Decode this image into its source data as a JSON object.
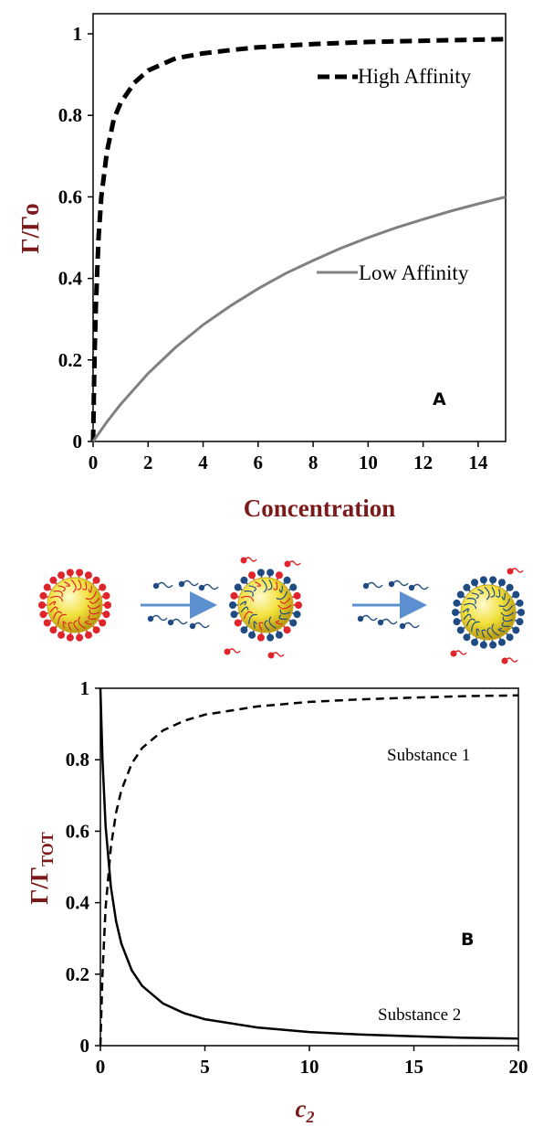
{
  "chart_data": [
    {
      "type": "line",
      "panel_label": "A",
      "xlabel": "Concentration",
      "ylabel": "Γ/Γo",
      "xlim": [
        0,
        15
      ],
      "ylim": [
        0,
        1
      ],
      "xticks": [
        "0",
        "2",
        "4",
        "6",
        "8",
        "10",
        "12",
        "14"
      ],
      "yticks": [
        "0",
        "0.2",
        "0.4",
        "0.6",
        "0.8",
        "1"
      ],
      "legend": [
        "High Affinity",
        "Low Affinity"
      ],
      "series": [
        {
          "name": "High Affinity",
          "style": "dashed",
          "color": "#000000",
          "x": [
            0,
            0.05,
            0.1,
            0.2,
            0.3,
            0.5,
            0.75,
            1,
            1.5,
            2,
            3,
            4,
            5,
            6,
            8,
            10,
            12,
            15
          ],
          "y": [
            0,
            0.2,
            0.33,
            0.5,
            0.6,
            0.71,
            0.79,
            0.83,
            0.88,
            0.91,
            0.94,
            0.952,
            0.96,
            0.967,
            0.975,
            0.98,
            0.983,
            0.987
          ]
        },
        {
          "name": "Low Affinity",
          "style": "solid",
          "color": "#808080",
          "x": [
            0,
            0.5,
            1,
            2,
            3,
            4,
            5,
            6,
            7,
            8,
            9,
            10,
            11,
            12,
            13,
            14,
            15
          ],
          "y": [
            0,
            0.048,
            0.091,
            0.167,
            0.231,
            0.286,
            0.333,
            0.375,
            0.412,
            0.444,
            0.474,
            0.5,
            0.524,
            0.545,
            0.565,
            0.583,
            0.6
          ]
        }
      ]
    },
    {
      "type": "line",
      "panel_label": "B",
      "xlabel": "c2",
      "ylabel": "Γ/ΓTOT",
      "xlim": [
        0,
        20
      ],
      "ylim": [
        0,
        1
      ],
      "xticks": [
        "0",
        "5",
        "10",
        "15",
        "20"
      ],
      "yticks": [
        "0",
        "0.2",
        "0.4",
        "0.6",
        "0.8",
        "1"
      ],
      "legend": [
        "Substance 1",
        "Substance 2"
      ],
      "series": [
        {
          "name": "Substance 1",
          "style": "dashed",
          "color": "#000000",
          "x": [
            0,
            0.1,
            0.25,
            0.5,
            0.75,
            1,
            1.5,
            2,
            3,
            4,
            5,
            7.5,
            10,
            12.5,
            15,
            17.5,
            20
          ],
          "y": [
            0,
            0.2,
            0.385,
            0.556,
            0.652,
            0.714,
            0.789,
            0.833,
            0.882,
            0.909,
            0.926,
            0.949,
            0.962,
            0.969,
            0.974,
            0.978,
            0.98
          ]
        },
        {
          "name": "Substance 2",
          "style": "solid",
          "color": "#000000",
          "x": [
            0,
            0.1,
            0.25,
            0.5,
            0.75,
            1,
            1.5,
            2,
            3,
            4,
            5,
            7.5,
            10,
            12.5,
            15,
            17.5,
            20
          ],
          "y": [
            1,
            0.8,
            0.615,
            0.444,
            0.348,
            0.286,
            0.211,
            0.167,
            0.118,
            0.091,
            0.074,
            0.051,
            0.038,
            0.031,
            0.026,
            0.022,
            0.02
          ]
        }
      ]
    }
  ],
  "colors": {
    "axis_label": "#7b1a1a",
    "particle_core": "#f2e03a",
    "ligand_red": "#e0242b",
    "ligand_blue": "#1f4b82",
    "arrow": "#5b8fd0"
  }
}
